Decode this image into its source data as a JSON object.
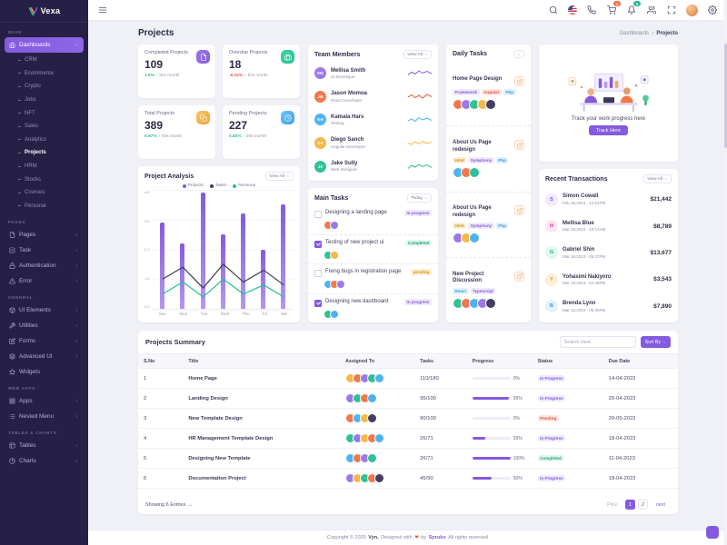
{
  "theme": {
    "primary": "#845adf",
    "success": "#26bf94",
    "warning": "#f5b849",
    "danger": "#e6533c",
    "info": "#49b6f5",
    "sidebar_bg": "#262046",
    "background": "#f0f1f7"
  },
  "app": {
    "name": "Vexa"
  },
  "topbar": {
    "cart_badge": "1",
    "bell_badge": "5"
  },
  "page": {
    "title": "Projects",
    "breadcrumb_parent": "Dashboards",
    "breadcrumb_sep": "›",
    "breadcrumb_current": "Projects"
  },
  "sidebar": {
    "sections": [
      {
        "label": "MAIN"
      },
      {
        "label": "PAGES"
      },
      {
        "label": "GENERAL"
      },
      {
        "label": "WEB APPS"
      },
      {
        "label": "TABLES & CHARTS"
      }
    ],
    "dashboards_label": "Dashboards",
    "dashboard_children": [
      "CRM",
      "Ecommerce",
      "Crypto",
      "Jobs",
      "NFT",
      "Sales",
      "Analytics",
      "Projects",
      "HRM",
      "Stocks",
      "Courses",
      "Personal"
    ],
    "pages_items": [
      "Pages",
      "Task",
      "Authentication",
      "Error"
    ],
    "general_items": [
      "UI Elements",
      "Utilities",
      "Forms",
      "Advanced UI",
      "Widgets"
    ],
    "webapps_items": [
      "Apps",
      "Nested Menu"
    ],
    "tables_items": [
      "Tables",
      "Charts"
    ]
  },
  "stats": {
    "cards": [
      {
        "label": "Completed Projects",
        "value": "109",
        "trend": "1.5%",
        "trend_arrow": "↑",
        "trend_dir": "up",
        "period": "this month",
        "tone": "primary"
      },
      {
        "label": "Overdue Projects",
        "value": "18",
        "trend": "-0.22%",
        "trend_arrow": "↓",
        "trend_dir": "down",
        "period": "this month",
        "tone": "success"
      },
      {
        "label": "Total Projects",
        "value": "389",
        "trend": "0.67%",
        "trend_arrow": "↑",
        "trend_dir": "up",
        "period": "this month",
        "tone": "warning"
      },
      {
        "label": "Pending Projects",
        "value": "227",
        "trend": "0.82%",
        "trend_arrow": "↑",
        "trend_dir": "up",
        "period": "this month",
        "tone": "info"
      }
    ]
  },
  "team": {
    "title": "Team Members",
    "view_all": "View All",
    "members": [
      {
        "name": "Mellisa Smith",
        "role": "UI Developer",
        "initials": "MS",
        "spark_color": "#845adf"
      },
      {
        "name": "Jason Momoa",
        "role": "React Developer",
        "initials": "JM",
        "spark_color": "#e6533c"
      },
      {
        "name": "Kamala Hars",
        "role": "Testing",
        "initials": "KH",
        "spark_color": "#49b6f5"
      },
      {
        "name": "Diego Sanch",
        "role": "Angular Developer",
        "initials": "DS",
        "spark_color": "#f5b849"
      },
      {
        "name": "Jake Sully",
        "role": "Web Designer",
        "initials": "JS",
        "spark_color": "#26bf94"
      }
    ]
  },
  "daily": {
    "title": "Daily Tasks",
    "view_all": "View All",
    "tasks": [
      {
        "title": "Home Page Design",
        "badges": [
          {
            "label": "Framework",
            "tone": "primary"
          },
          {
            "label": "Angular",
            "tone": "danger"
          },
          {
            "label": "Php",
            "tone": "info"
          }
        ]
      },
      {
        "title": "About Us Page redesign",
        "badges": [
          {
            "label": "Html",
            "tone": "warning"
          },
          {
            "label": "Symphony",
            "tone": "primary"
          },
          {
            "label": "Php",
            "tone": "info"
          }
        ]
      },
      {
        "title": "About Us Page redesign",
        "badges": [
          {
            "label": "Html",
            "tone": "warning"
          },
          {
            "label": "Symphony",
            "tone": "primary"
          },
          {
            "label": "Php",
            "tone": "info"
          }
        ]
      },
      {
        "title": "New Project Discussion",
        "badges": [
          {
            "label": "React",
            "tone": "info"
          },
          {
            "label": "Typescript",
            "tone": "primary"
          }
        ]
      }
    ]
  },
  "promo": {
    "text": "Track your work progress here",
    "button": "Track Here"
  },
  "transactions": {
    "title": "Recent Transactions",
    "view_all": "View All",
    "items": [
      {
        "initial": "S",
        "name": "Simon Cowall",
        "date": "Feb 28,2023 - 12:54PM",
        "amount": "$21,442",
        "tone": "primary"
      },
      {
        "initial": "M",
        "name": "Mellisa Blue",
        "date": "Mar 28,2023 - 10:14AM",
        "amount": "$8,789",
        "tone": "pink"
      },
      {
        "initial": "G",
        "name": "Gabriel Shin",
        "date": "Mar 16,2023 - 05:27PM",
        "amount": "$13,677",
        "tone": "success"
      },
      {
        "initial": "Y",
        "name": "Yohasimi Nakiyoro",
        "date": "Mar 19,2023 - 04:49PM",
        "amount": "$3,543",
        "tone": "warning"
      },
      {
        "initial": "B",
        "name": "Brenda Lynn",
        "date": "Mar 10,2023 - 06:25PM",
        "amount": "$7,890",
        "tone": "info"
      }
    ]
  },
  "analysis": {
    "title": "Project Analysis",
    "view_all": "View All"
  },
  "chart_data": {
    "type": "bar",
    "title": "Project Analysis",
    "categories": [
      "Sun",
      "Mon",
      "Tue",
      "Wed",
      "Thu",
      "Fri",
      "Sat"
    ],
    "series": [
      {
        "name": "Projects",
        "kind": "bar",
        "color": "#845adf",
        "values": [
          2.9,
          2.2,
          3.9,
          2.5,
          3.2,
          2.0,
          3.5
        ]
      },
      {
        "name": "Tasks",
        "kind": "line",
        "color": "#3f3f51",
        "values": [
          1.0,
          1.4,
          0.7,
          1.5,
          0.9,
          1.3,
          0.8
        ]
      },
      {
        "name": "Revenue",
        "kind": "line",
        "color": "#26bf94",
        "values": [
          0.5,
          0.9,
          0.4,
          1.0,
          0.5,
          0.8,
          0.4
        ]
      }
    ],
    "ylim": [
      0,
      4
    ],
    "yticks": [
      "4.0",
      "3.0",
      "2.0",
      "1.0",
      "0.0"
    ],
    "xlabel": "",
    "ylabel": "",
    "grid": true,
    "legend_position": "top"
  },
  "main_tasks": {
    "title": "Main Tasks",
    "filter": "Today",
    "items": [
      {
        "label": "Designing a landing page",
        "checked": false,
        "badge": {
          "label": "In progress",
          "tone": "primary"
        }
      },
      {
        "label": "Testing of new project ui",
        "checked": true,
        "badge": {
          "label": "Completed",
          "tone": "success"
        }
      },
      {
        "label": "Fixing bugs in registration page",
        "checked": false,
        "badge": {
          "label": "pending",
          "tone": "warning"
        }
      },
      {
        "label": "Designing new dashboard",
        "checked": true,
        "badge": {
          "label": "In progress",
          "tone": "primary"
        }
      }
    ]
  },
  "summary": {
    "title": "Projects Summary",
    "search_placeholder": "Search Here",
    "sort_label": "Sort By",
    "columns": [
      "S.No",
      "Title",
      "Assigned To",
      "Tasks",
      "Progress",
      "Status",
      "Due Date"
    ],
    "rows": [
      {
        "sno": "1",
        "title": "Home Page",
        "tasks": "110/180",
        "progress": "0%",
        "status": {
          "label": "In Progress",
          "tone": "primary"
        },
        "due": "14-04-2023"
      },
      {
        "sno": "2",
        "title": "Landing Design",
        "tasks": "95/100",
        "progress": "95%",
        "status": {
          "label": "In Progress",
          "tone": "primary"
        },
        "due": "20-04-2023"
      },
      {
        "sno": "3",
        "title": "New Template Design",
        "tasks": "90/100",
        "progress": "0%",
        "status": {
          "label": "Pending",
          "tone": "danger"
        },
        "due": "29-05-2023"
      },
      {
        "sno": "4",
        "title": "HR Management Template Design",
        "tasks": "26/71",
        "progress": "35%",
        "status": {
          "label": "In Progress",
          "tone": "primary"
        },
        "due": "18-04-2023"
      },
      {
        "sno": "5",
        "title": "Designing New Template",
        "tasks": "26/71",
        "progress": "100%",
        "status": {
          "label": "Completed",
          "tone": "success"
        },
        "due": "11-04-2023"
      },
      {
        "sno": "6",
        "title": "Documentation Project",
        "tasks": "45/90",
        "progress": "50%",
        "status": {
          "label": "In Progress",
          "tone": "primary"
        },
        "due": "18-04-2023"
      }
    ],
    "showing": "Showing 6 Entries",
    "showing_arrow": "→",
    "pagination": {
      "prev": "Prev",
      "pages": [
        "1",
        "2"
      ],
      "next": "next",
      "active": "1"
    }
  },
  "footer": {
    "copyright": "Copyright © 2025",
    "app": "Vyn.",
    "designed": "Designed with",
    "heart": "❤",
    "by": "by",
    "brand": "Spruko",
    "rights": "All rights reserved"
  }
}
